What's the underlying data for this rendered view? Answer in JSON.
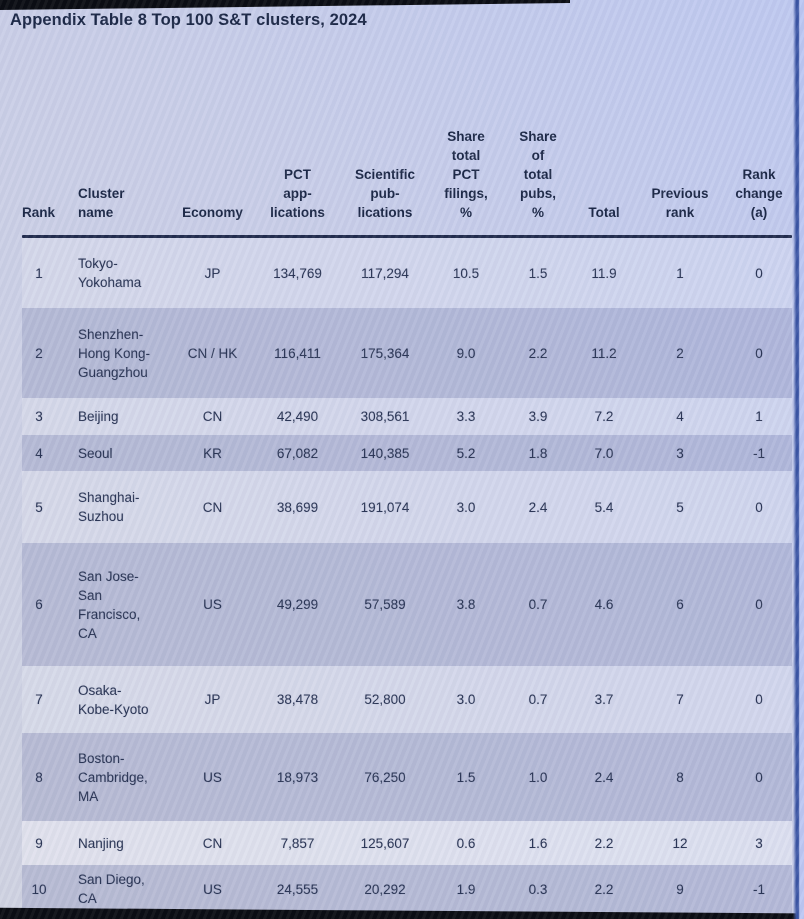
{
  "title": "Appendix Table 8 Top 100 S&T clusters, 2024",
  "table": {
    "columns": [
      {
        "id": "rank",
        "label": "Rank"
      },
      {
        "id": "cluster_name",
        "label": "Cluster\nname"
      },
      {
        "id": "economy",
        "label": "Economy"
      },
      {
        "id": "pct_applications",
        "label": "PCT\napp-\nlications"
      },
      {
        "id": "scientific_publications",
        "label": "Scientific\npub-\nlications"
      },
      {
        "id": "share_total_pct_filings",
        "label": "Share\ntotal\nPCT\nfilings,\n%"
      },
      {
        "id": "share_of_total_pubs",
        "label": "Share\nof\ntotal\npubs,\n%"
      },
      {
        "id": "total",
        "label": "Total"
      },
      {
        "id": "previous_rank",
        "label": "Previous\nrank"
      },
      {
        "id": "rank_change",
        "label": "Rank\nchange\n(a)"
      }
    ],
    "rows": [
      {
        "rank": "1",
        "cluster_name": "Tokyo-\nYokohama",
        "economy": "JP",
        "pct_applications": "134,769",
        "scientific_publications": "117,294",
        "share_total_pct_filings": "10.5",
        "share_of_total_pubs": "1.5",
        "total": "11.9",
        "previous_rank": "1",
        "rank_change": "0"
      },
      {
        "rank": "2",
        "cluster_name": "Shenzhen-\nHong Kong-\nGuangzhou",
        "economy": "CN / HK",
        "pct_applications": "116,411",
        "scientific_publications": "175,364",
        "share_total_pct_filings": "9.0",
        "share_of_total_pubs": "2.2",
        "total": "11.2",
        "previous_rank": "2",
        "rank_change": "0"
      },
      {
        "rank": "3",
        "cluster_name": "Beijing",
        "economy": "CN",
        "pct_applications": "42,490",
        "scientific_publications": "308,561",
        "share_total_pct_filings": "3.3",
        "share_of_total_pubs": "3.9",
        "total": "7.2",
        "previous_rank": "4",
        "rank_change": "1"
      },
      {
        "rank": "4",
        "cluster_name": "Seoul",
        "economy": "KR",
        "pct_applications": "67,082",
        "scientific_publications": "140,385",
        "share_total_pct_filings": "5.2",
        "share_of_total_pubs": "1.8",
        "total": "7.0",
        "previous_rank": "3",
        "rank_change": "-1"
      },
      {
        "rank": "5",
        "cluster_name": "Shanghai-\nSuzhou",
        "economy": "CN",
        "pct_applications": "38,699",
        "scientific_publications": "191,074",
        "share_total_pct_filings": "3.0",
        "share_of_total_pubs": "2.4",
        "total": "5.4",
        "previous_rank": "5",
        "rank_change": "0"
      },
      {
        "rank": "6",
        "cluster_name": "San Jose-\nSan\nFrancisco,\nCA",
        "economy": "US",
        "pct_applications": "49,299",
        "scientific_publications": "57,589",
        "share_total_pct_filings": "3.8",
        "share_of_total_pubs": "0.7",
        "total": "4.6",
        "previous_rank": "6",
        "rank_change": "0"
      },
      {
        "rank": "7",
        "cluster_name": "Osaka-\nKobe-Kyoto",
        "economy": "JP",
        "pct_applications": "38,478",
        "scientific_publications": "52,800",
        "share_total_pct_filings": "3.0",
        "share_of_total_pubs": "0.7",
        "total": "3.7",
        "previous_rank": "7",
        "rank_change": "0"
      },
      {
        "rank": "8",
        "cluster_name": "Boston-\nCambridge,\nMA",
        "economy": "US",
        "pct_applications": "18,973",
        "scientific_publications": "76,250",
        "share_total_pct_filings": "1.5",
        "share_of_total_pubs": "1.0",
        "total": "2.4",
        "previous_rank": "8",
        "rank_change": "0"
      },
      {
        "rank": "9",
        "cluster_name": "Nanjing",
        "economy": "CN",
        "pct_applications": "7,857",
        "scientific_publications": "125,607",
        "share_total_pct_filings": "0.6",
        "share_of_total_pubs": "1.6",
        "total": "2.2",
        "previous_rank": "12",
        "rank_change": "3"
      },
      {
        "rank": "10",
        "cluster_name": "San Diego,\nCA",
        "economy": "US",
        "pct_applications": "24,555",
        "scientific_publications": "20,292",
        "share_total_pct_filings": "1.9",
        "share_of_total_pubs": "0.3",
        "total": "2.2",
        "previous_rank": "9",
        "rank_change": "-1"
      }
    ]
  },
  "colors": {
    "accent_text": "#1c2847",
    "data_text": "#2b3656",
    "rule": "#222c4e",
    "row_dark": "#8089b24d",
    "row_light": "#ffffff2e",
    "row_bright": "#ffffff59",
    "screen_bg_from": "#d0d3e2",
    "screen_bg_to": "#bfc9f0",
    "edge_black": "#0b0d13",
    "bezel_blue": "#3b55a4",
    "bezel_light": "#bcc7f3"
  }
}
